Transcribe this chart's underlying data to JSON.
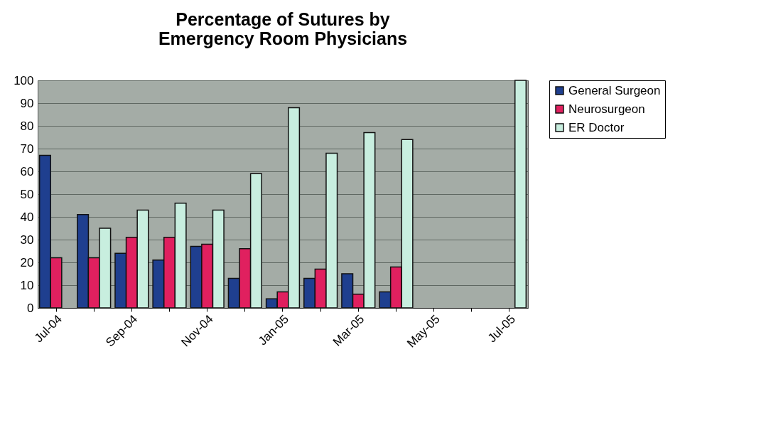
{
  "chart_data": {
    "type": "bar",
    "title": "Percentage of Sutures by Emergency Room Physicians",
    "categories": [
      "Jul-04",
      null,
      "Sep-04",
      null,
      "Nov-04",
      null,
      "Jan-05",
      null,
      "Mar-05",
      null,
      "May-05",
      null,
      "Jul-05"
    ],
    "series": [
      {
        "name": "General Surgeon",
        "color": "#1f3f8f",
        "values": [
          67,
          41,
          24,
          21,
          27,
          13,
          4,
          13,
          15,
          7,
          null,
          null,
          null
        ]
      },
      {
        "name": "Neurosurgeon",
        "color": "#e0205f",
        "values": [
          22,
          22,
          31,
          31,
          28,
          26,
          7,
          17,
          6,
          18,
          null,
          null,
          null
        ]
      },
      {
        "name": "ER Doctor",
        "color": "#c8eedf",
        "values": [
          null,
          35,
          43,
          46,
          43,
          59,
          88,
          68,
          77,
          74,
          null,
          null,
          100
        ]
      }
    ],
    "ylim": [
      0,
      100
    ],
    "yticks": [
      0,
      10,
      20,
      30,
      40,
      50,
      60,
      70,
      80,
      90,
      100
    ],
    "grid": "y",
    "legend": "right"
  }
}
